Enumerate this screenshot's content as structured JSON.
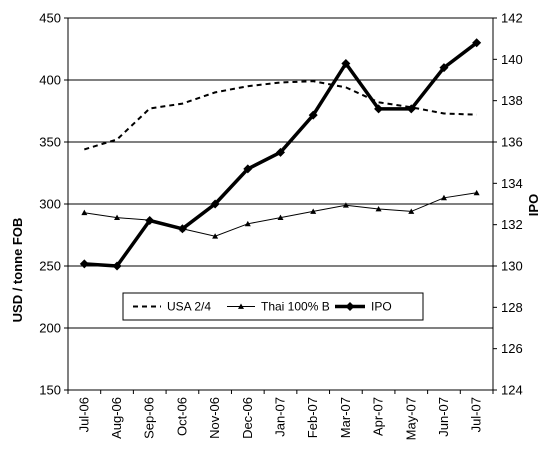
{
  "chart_data": {
    "type": "line",
    "title": "",
    "categories": [
      "Jul-06",
      "Aug-06",
      "Sep-06",
      "Oct-06",
      "Nov-06",
      "Dec-06",
      "Jan-07",
      "Feb-07",
      "Mar-07",
      "Apr-07",
      "May-07",
      "Jun-07",
      "Jul-07"
    ],
    "ylabel": "USD / tonne FOB",
    "y2label": "IPO",
    "ylim": [
      150,
      450
    ],
    "yticks": [
      150,
      200,
      250,
      300,
      350,
      400,
      450
    ],
    "y2lim": [
      124,
      142
    ],
    "y2ticks": [
      124,
      126,
      128,
      130,
      132,
      134,
      136,
      138,
      140,
      142
    ],
    "grid": "horizontal",
    "legend": "inside-lower-center",
    "series": [
      {
        "name": "USA 2/4",
        "axis": "left",
        "style": "dashed",
        "color": "#000000",
        "values": [
          344,
          352,
          377,
          381,
          390,
          395,
          398,
          399,
          394,
          382,
          378,
          373,
          372
        ]
      },
      {
        "name": "Thai 100% B",
        "axis": "left",
        "style": "thin-triangle",
        "color": "#000000",
        "values": [
          293,
          289,
          287,
          280,
          274,
          284,
          289,
          294,
          299,
          296,
          294,
          305,
          309
        ]
      },
      {
        "name": "IPO",
        "axis": "right",
        "style": "thick-diamond",
        "color": "#000000",
        "values": [
          130.1,
          130.0,
          132.2,
          131.8,
          133.0,
          134.7,
          135.5,
          137.3,
          139.8,
          137.6,
          137.6,
          139.6,
          140.8
        ]
      }
    ]
  }
}
